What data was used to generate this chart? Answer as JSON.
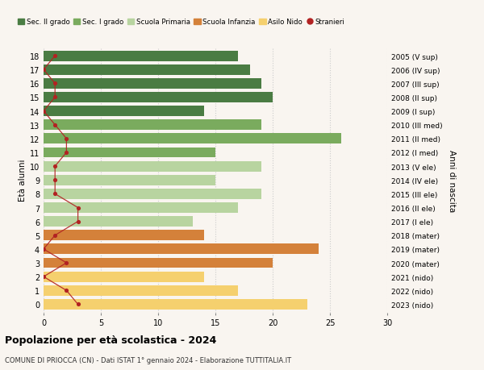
{
  "ages": [
    18,
    17,
    16,
    15,
    14,
    13,
    12,
    11,
    10,
    9,
    8,
    7,
    6,
    5,
    4,
    3,
    2,
    1,
    0
  ],
  "right_labels": [
    "2005 (V sup)",
    "2006 (IV sup)",
    "2007 (III sup)",
    "2008 (II sup)",
    "2009 (I sup)",
    "2010 (III med)",
    "2011 (II med)",
    "2012 (I med)",
    "2013 (V ele)",
    "2014 (IV ele)",
    "2015 (III ele)",
    "2016 (II ele)",
    "2017 (I ele)",
    "2018 (mater)",
    "2019 (mater)",
    "2020 (mater)",
    "2021 (nido)",
    "2022 (nido)",
    "2023 (nido)"
  ],
  "bar_values": [
    17,
    18,
    19,
    20,
    14,
    19,
    26,
    15,
    19,
    15,
    19,
    17,
    13,
    14,
    24,
    20,
    14,
    17,
    23
  ],
  "stranieri": [
    1,
    0,
    1,
    1,
    0,
    1,
    2,
    2,
    1,
    1,
    1,
    3,
    3,
    1,
    0,
    2,
    0,
    2,
    3
  ],
  "bar_colors": [
    "#4a7c43",
    "#4a7c43",
    "#4a7c43",
    "#4a7c43",
    "#4a7c43",
    "#7aab5e",
    "#7aab5e",
    "#7aab5e",
    "#b8d4a0",
    "#b8d4a0",
    "#b8d4a0",
    "#b8d4a0",
    "#b8d4a0",
    "#d4813a",
    "#d4813a",
    "#d4813a",
    "#f5d06e",
    "#f5d06e",
    "#f5d06e"
  ],
  "legend_labels": [
    "Sec. II grado",
    "Sec. I grado",
    "Scuola Primaria",
    "Scuola Infanzia",
    "Asilo Nido",
    "Stranieri"
  ],
  "legend_colors": [
    "#4a7c43",
    "#7aab5e",
    "#b8d4a0",
    "#d4813a",
    "#f5d06e",
    "#b22222"
  ],
  "stranieri_color": "#b22222",
  "stranieri_line_color": "#b22222",
  "ylabel_left": "Età alunni",
  "ylabel_right": "Anni di nascita",
  "title": "Popolazione per età scolastica - 2024",
  "subtitle": "COMUNE DI PRIOCCA (CN) - Dati ISTAT 1° gennaio 2024 - Elaborazione TUTTITALIA.IT",
  "xlim": [
    0,
    30
  ],
  "background_color": "#f9f5f0",
  "grid_color": "#cccccc",
  "bar_height": 0.75
}
